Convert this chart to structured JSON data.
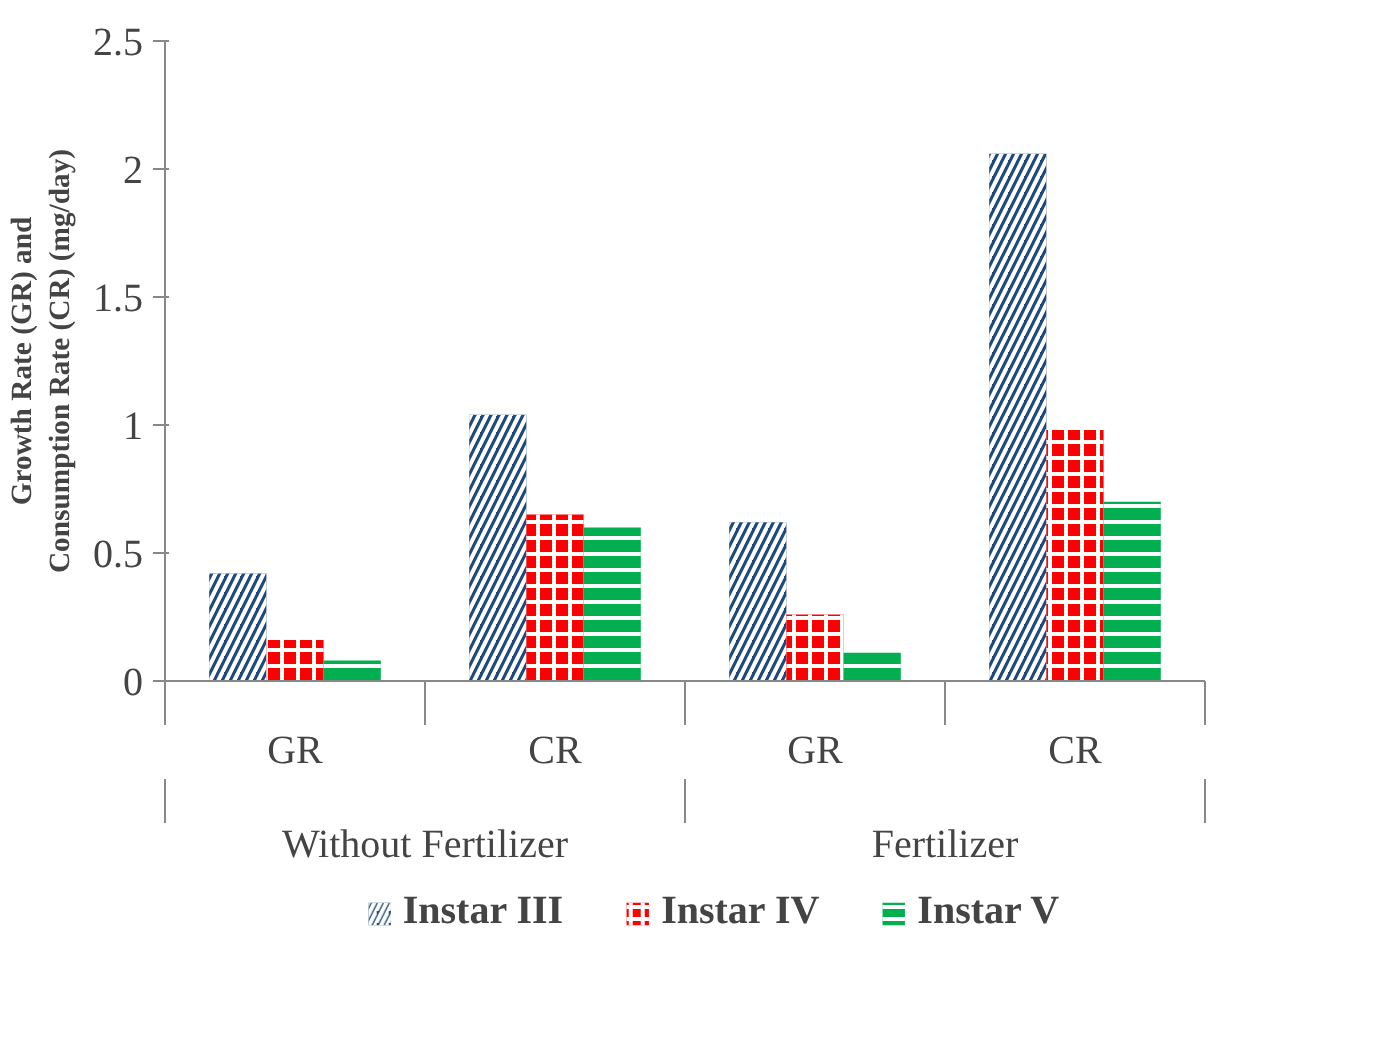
{
  "chart_data": {
    "type": "bar",
    "ylabel": "Growth Rate (GR) and\nConsumption Rate (CR) (mg/day)",
    "categories": [
      "GR",
      "CR",
      "GR",
      "CR"
    ],
    "annotations": [
      "Without Fertilizer",
      "Fertilizer"
    ],
    "series": [
      {
        "name": "Instar III",
        "color": "#1f497d",
        "values": [
          0.42,
          1.04,
          0.62,
          2.06
        ]
      },
      {
        "name": "Instar IV",
        "color": "#ff0000",
        "values": [
          0.16,
          0.65,
          0.26,
          0.98
        ]
      },
      {
        "name": "Instar V",
        "color": "#00b050",
        "values": [
          0.08,
          0.6,
          0.11,
          0.7
        ]
      }
    ],
    "ylim": [
      0,
      2.5
    ],
    "yticks": [
      0,
      0.5,
      1,
      1.5,
      2,
      2.5
    ],
    "grid": false,
    "legend": "bottom"
  }
}
